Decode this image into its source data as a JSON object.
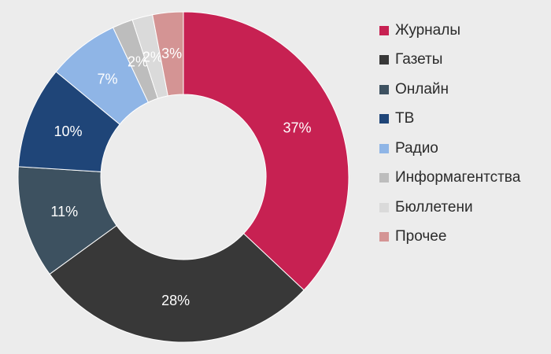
{
  "chart_data": {
    "type": "pie",
    "subtype": "donut",
    "legend_position": "right",
    "categories": [
      "Журналы",
      "Газеты",
      "Онлайн",
      "ТВ",
      "Радио",
      "Информагентства",
      "Бюллетени",
      "Прочее"
    ],
    "values": [
      37,
      28,
      11,
      10,
      7,
      2,
      2,
      3
    ],
    "labels": [
      "37%",
      "28%",
      "11%",
      "10%",
      "7%",
      "2%",
      "2%",
      "3%"
    ],
    "colors": [
      "#c72152",
      "#383838",
      "#3d5160",
      "#1f4578",
      "#8fb5e6",
      "#bdbdbd",
      "#dadada",
      "#d49494"
    ]
  }
}
